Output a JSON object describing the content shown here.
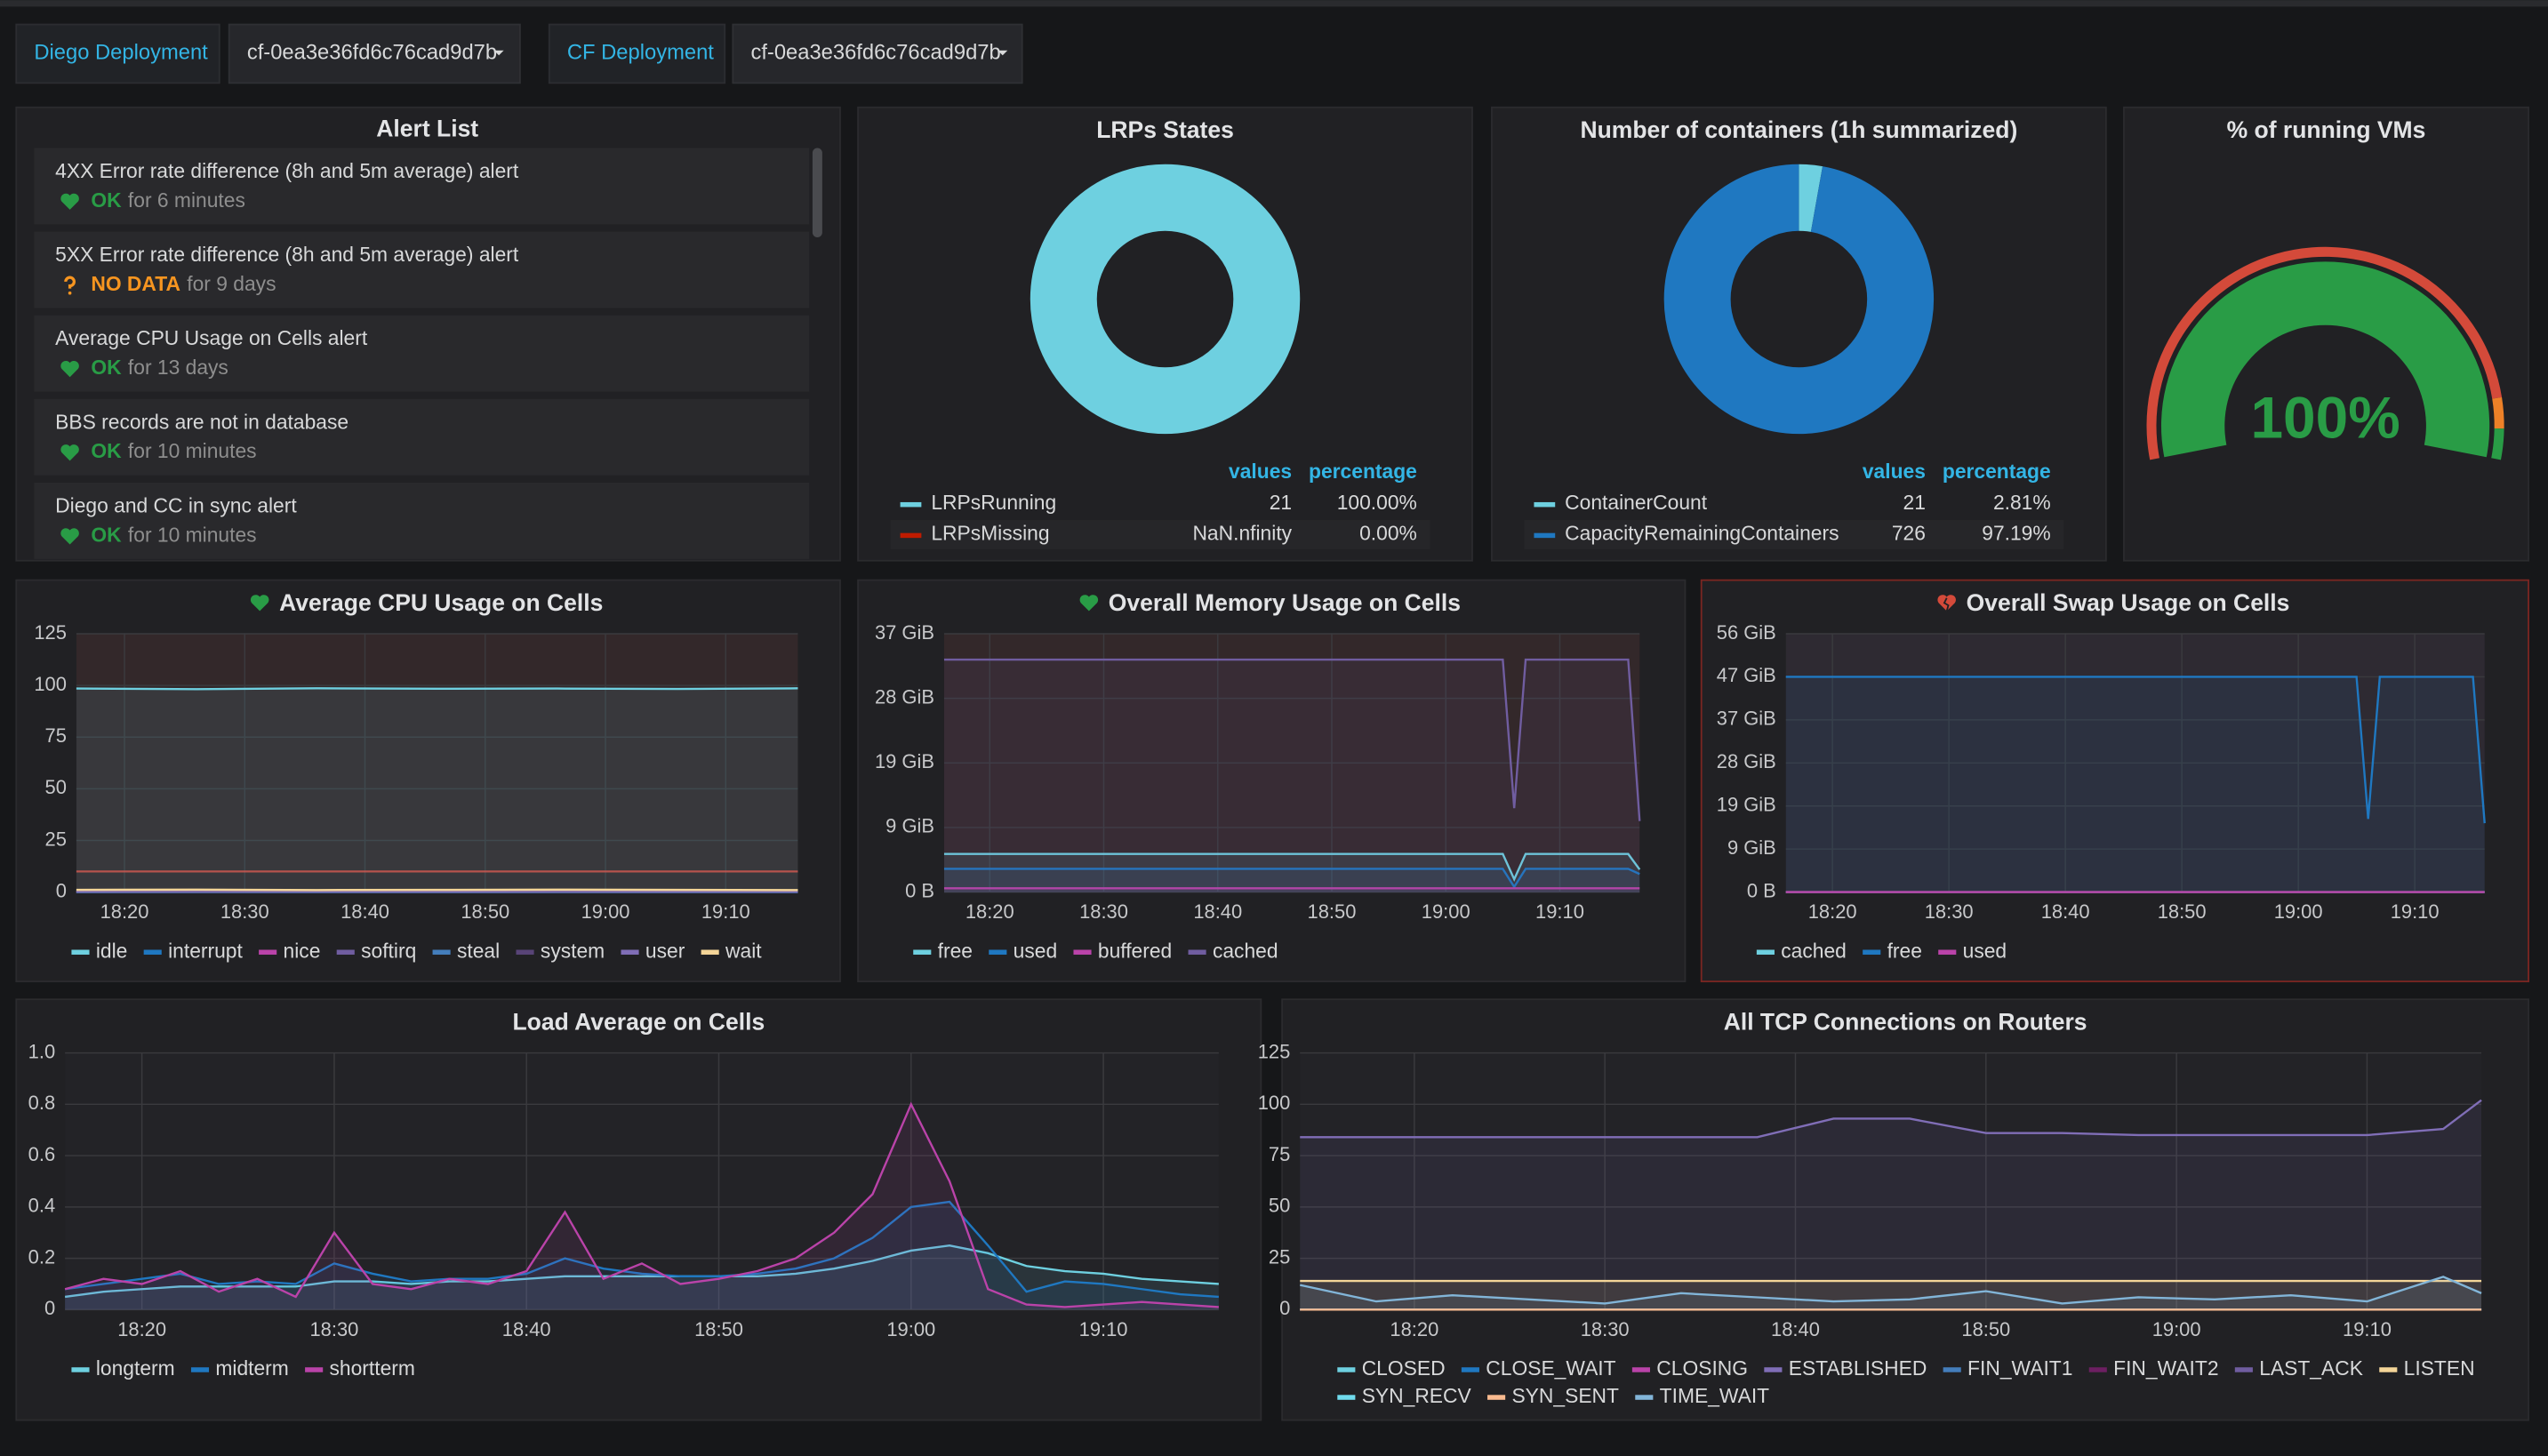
{
  "header": {
    "variables": [
      {
        "label": "Diego Deployment",
        "value": "cf-0ea3e36fd6c76cad9d7b"
      },
      {
        "label": "CF Deployment",
        "value": "cf-0ea3e36fd6c76cad9d7b"
      }
    ]
  },
  "alert_list": {
    "title": "Alert List",
    "alerts": [
      {
        "name": "4XX Error rate difference (8h and 5m average) alert",
        "state": "OK",
        "duration": "for 6 minutes",
        "icon": "heart",
        "color": "#299c46"
      },
      {
        "name": "5XX Error rate difference (8h and 5m average) alert",
        "state": "NO DATA",
        "duration": "for 9 days",
        "icon": "question",
        "color": "#f79520"
      },
      {
        "name": "Average CPU Usage on Cells alert",
        "state": "OK",
        "duration": "for 13 days",
        "icon": "heart",
        "color": "#299c46"
      },
      {
        "name": "BBS records are not in database",
        "state": "OK",
        "duration": "for 10 minutes",
        "icon": "heart",
        "color": "#299c46"
      },
      {
        "name": "Diego and CC in sync alert",
        "state": "OK",
        "duration": "for 10 minutes",
        "icon": "heart",
        "color": "#299c46"
      }
    ]
  },
  "chart_data": [
    {
      "type": "pie",
      "title": "LRPs States",
      "columns": [
        "values",
        "percentage"
      ],
      "categories": [
        "LRPsRunning",
        "LRPsMissing"
      ],
      "values": [
        21,
        null
      ],
      "value_labels": [
        "21",
        "NaN.nfinity"
      ],
      "percentages": [
        "100.00%",
        "0.00%"
      ],
      "colors": [
        "#6ed0e0",
        "#bf1b00"
      ]
    },
    {
      "type": "pie",
      "title": "Number of containers (1h summarized)",
      "columns": [
        "values",
        "percentage"
      ],
      "categories": [
        "ContainerCount",
        "CapacityRemainingContainers"
      ],
      "values": [
        21,
        726
      ],
      "value_labels": [
        "21",
        "726"
      ],
      "percentages": [
        "2.81%",
        "97.19%"
      ],
      "colors": [
        "#6ed0e0",
        "#1f78c1"
      ]
    },
    {
      "type": "gauge",
      "title": "% of running VMs",
      "value": 100,
      "value_label": "100%",
      "min": 0,
      "max": 100,
      "thresholds": [
        90,
        95
      ],
      "colors": [
        "#d44a3a",
        "#ed8128",
        "#299c46"
      ]
    },
    {
      "type": "line",
      "title": "Average CPU Usage on Cells",
      "alert_icon": {
        "icon": "heart",
        "color": "#299c46"
      },
      "x": [
        "18:16",
        "18:26",
        "18:36",
        "18:46",
        "18:56",
        "19:06",
        "19:16"
      ],
      "xlim": [
        "18:16",
        "19:16"
      ],
      "xticks": [
        "18:20",
        "18:30",
        "18:40",
        "18:50",
        "19:00",
        "19:10"
      ],
      "ylim": [
        0,
        125
      ],
      "yticks": [
        0,
        25,
        50,
        75,
        100,
        125
      ],
      "threshold": 10,
      "threshold_color": "#e24d42",
      "series": [
        {
          "name": "idle",
          "color": "#6ed0e0",
          "values": [
            98.5,
            98.2,
            98.6,
            98.4,
            98.5,
            98.3,
            98.6
          ]
        },
        {
          "name": "interrupt",
          "color": "#1f78c1",
          "values": [
            0,
            0,
            0,
            0,
            0,
            0,
            0
          ]
        },
        {
          "name": "nice",
          "color": "#ba43a9",
          "values": [
            0,
            0,
            0,
            0,
            0,
            0,
            0
          ]
        },
        {
          "name": "softirq",
          "color": "#705da0",
          "values": [
            0.1,
            0.1,
            0.1,
            0.1,
            0.1,
            0.1,
            0.1
          ]
        },
        {
          "name": "steal",
          "color": "#447ebc",
          "values": [
            0,
            0,
            0,
            0,
            0,
            0,
            0
          ]
        },
        {
          "name": "system",
          "color": "#584477",
          "values": [
            0.3,
            0.3,
            0.3,
            0.3,
            0.3,
            0.3,
            0.3
          ]
        },
        {
          "name": "user",
          "color": "#806eb7",
          "values": [
            0.4,
            0.5,
            0.4,
            0.4,
            0.5,
            0.4,
            0.4
          ]
        },
        {
          "name": "wait",
          "color": "#f4d598",
          "values": [
            1.1,
            1.2,
            1,
            1.1,
            1.2,
            1.1,
            1
          ]
        }
      ]
    },
    {
      "type": "line",
      "title": "Overall Memory Usage on Cells",
      "alert_icon": {
        "icon": "heart",
        "color": "#299c46"
      },
      "x": [
        "18:16",
        "18:26",
        "18:36",
        "18:46",
        "18:56",
        "19:05",
        "19:06",
        "19:07",
        "19:16",
        "19:17"
      ],
      "xlim": [
        "18:16",
        "19:17"
      ],
      "xticks": [
        "18:20",
        "18:30",
        "18:40",
        "18:50",
        "19:00",
        "19:10"
      ],
      "ylim": [
        0,
        40000000000
      ],
      "yticks": [
        {
          "value": 0,
          "label": "0 B"
        },
        {
          "value": 10000000000,
          "label": "9 GiB"
        },
        {
          "value": 20000000000,
          "label": "19 GiB"
        },
        {
          "value": 30000000000,
          "label": "28 GiB"
        },
        {
          "value": 40000000000,
          "label": "37 GiB"
        }
      ],
      "series": [
        {
          "name": "free",
          "color": "#6ed0e0",
          "values": [
            5900000000,
            5900000000,
            5900000000,
            5900000000,
            5900000000,
            5900000000,
            2000000000,
            5900000000,
            5900000000,
            3500000000
          ]
        },
        {
          "name": "used",
          "color": "#1f78c1",
          "values": [
            3600000000,
            3600000000,
            3600000000,
            3600000000,
            3600000000,
            3600000000,
            800000000,
            3600000000,
            3600000000,
            2800000000
          ]
        },
        {
          "name": "buffered",
          "color": "#ba43a9",
          "values": [
            600000000,
            600000000,
            600000000,
            600000000,
            600000000,
            600000000,
            600000000,
            600000000,
            600000000,
            600000000
          ]
        },
        {
          "name": "cached",
          "color": "#705da0",
          "values": [
            36000000000,
            36000000000,
            36000000000,
            36000000000,
            36000000000,
            36000000000,
            13000000000,
            36000000000,
            36000000000,
            11000000000
          ]
        }
      ]
    },
    {
      "type": "line",
      "title": "Overall Swap Usage on Cells",
      "alert_icon": {
        "icon": "heart-broken",
        "color": "#d44a3a"
      },
      "x": [
        "18:16",
        "18:26",
        "18:36",
        "18:46",
        "18:56",
        "19:05",
        "19:06",
        "19:07",
        "19:15",
        "19:16"
      ],
      "xlim": [
        "18:16",
        "19:16"
      ],
      "xticks": [
        "18:20",
        "18:30",
        "18:40",
        "18:50",
        "19:00",
        "19:10"
      ],
      "ylim": [
        0,
        60000000000
      ],
      "yticks": [
        {
          "value": 0,
          "label": "0 B"
        },
        {
          "value": 10000000000,
          "label": "9 GiB"
        },
        {
          "value": 20000000000,
          "label": "19 GiB"
        },
        {
          "value": 30000000000,
          "label": "28 GiB"
        },
        {
          "value": 40000000000,
          "label": "37 GiB"
        },
        {
          "value": 50000000000,
          "label": "47 GiB"
        },
        {
          "value": 60000000000,
          "label": "56 GiB"
        }
      ],
      "series": [
        {
          "name": "cached",
          "color": "#6ed0e0",
          "values": [
            0,
            0,
            0,
            0,
            0,
            0,
            0,
            0,
            0,
            0
          ]
        },
        {
          "name": "free",
          "color": "#1f78c1",
          "values": [
            50000000000,
            50000000000,
            50000000000,
            50000000000,
            50000000000,
            50000000000,
            17000000000,
            50000000000,
            50000000000,
            16000000000
          ]
        },
        {
          "name": "used",
          "color": "#ba43a9",
          "values": [
            0,
            0,
            0,
            0,
            0,
            0,
            0,
            0,
            0,
            0
          ]
        }
      ]
    },
    {
      "type": "line",
      "title": "Load Average on Cells",
      "x": [
        "18:16",
        "18:18",
        "18:20",
        "18:22",
        "18:24",
        "18:26",
        "18:28",
        "18:30",
        "18:32",
        "18:34",
        "18:36",
        "18:38",
        "18:40",
        "18:42",
        "18:44",
        "18:46",
        "18:48",
        "18:50",
        "18:52",
        "18:54",
        "18:56",
        "18:58",
        "19:00",
        "19:02",
        "19:04",
        "19:06",
        "19:08",
        "19:10",
        "19:12",
        "19:14",
        "19:16"
      ],
      "xlim": [
        "18:16",
        "19:16"
      ],
      "xticks": [
        "18:20",
        "18:30",
        "18:40",
        "18:50",
        "19:00",
        "19:10"
      ],
      "ylim": [
        0,
        1
      ],
      "yticks": [
        0,
        0.2,
        0.4,
        0.6,
        0.8,
        {
          "value": 1,
          "label": "1.0"
        }
      ],
      "series": [
        {
          "name": "longterm",
          "color": "#6ed0e0",
          "values": [
            0.05,
            0.07,
            0.08,
            0.09,
            0.09,
            0.09,
            0.09,
            0.11,
            0.11,
            0.1,
            0.11,
            0.11,
            0.12,
            0.13,
            0.13,
            0.13,
            0.13,
            0.13,
            0.13,
            0.14,
            0.16,
            0.19,
            0.23,
            0.25,
            0.22,
            0.17,
            0.15,
            0.14,
            0.12,
            0.11,
            0.1
          ]
        },
        {
          "name": "midterm",
          "color": "#1f78c1",
          "values": [
            0.08,
            0.1,
            0.12,
            0.14,
            0.1,
            0.11,
            0.1,
            0.18,
            0.14,
            0.11,
            0.12,
            0.12,
            0.14,
            0.2,
            0.16,
            0.14,
            0.13,
            0.13,
            0.14,
            0.16,
            0.2,
            0.28,
            0.4,
            0.42,
            0.25,
            0.07,
            0.11,
            0.1,
            0.08,
            0.06,
            0.05
          ]
        },
        {
          "name": "shortterm",
          "color": "#ba43a9",
          "values": [
            0.08,
            0.12,
            0.1,
            0.15,
            0.07,
            0.12,
            0.05,
            0.3,
            0.1,
            0.08,
            0.12,
            0.1,
            0.15,
            0.38,
            0.12,
            0.18,
            0.1,
            0.12,
            0.15,
            0.2,
            0.3,
            0.45,
            0.8,
            0.5,
            0.08,
            0.02,
            0.01,
            0.02,
            0.03,
            0.02,
            0.01
          ]
        }
      ]
    },
    {
      "type": "line",
      "title": "All TCP Connections on Routers",
      "x": [
        "18:14",
        "18:18",
        "18:22",
        "18:26",
        "18:30",
        "18:34",
        "18:38",
        "18:42",
        "18:46",
        "18:50",
        "18:54",
        "18:58",
        "19:02",
        "19:06",
        "19:10",
        "19:14",
        "19:16"
      ],
      "xlim": [
        "18:14",
        "19:16"
      ],
      "xticks": [
        "18:20",
        "18:30",
        "18:40",
        "18:50",
        "19:00",
        "19:10"
      ],
      "ylim": [
        0,
        125
      ],
      "yticks": [
        0,
        25,
        50,
        75,
        100,
        125
      ],
      "series": [
        {
          "name": "CLOSED",
          "color": "#6ed0e0",
          "values": [
            0,
            0,
            0,
            0,
            0,
            0,
            0,
            0,
            0,
            0,
            0,
            0,
            0,
            0,
            0,
            0,
            0
          ]
        },
        {
          "name": "CLOSE_WAIT",
          "color": "#1f78c1",
          "values": [
            0,
            0,
            0,
            0,
            0,
            0,
            0,
            0,
            0,
            0,
            0,
            0,
            0,
            0,
            0,
            0,
            0
          ]
        },
        {
          "name": "CLOSING",
          "color": "#ba43a9",
          "values": [
            0,
            0,
            0,
            0,
            0,
            0,
            0,
            0,
            0,
            0,
            0,
            0,
            0,
            0,
            0,
            0,
            0
          ]
        },
        {
          "name": "ESTABLISHED",
          "color": "#806eb7",
          "values": [
            84,
            84,
            84,
            84,
            84,
            84,
            84,
            93,
            93,
            86,
            86,
            85,
            85,
            85,
            85,
            88,
            102
          ]
        },
        {
          "name": "FIN_WAIT1",
          "color": "#447ebc",
          "values": [
            0,
            0,
            0,
            0,
            0,
            0,
            0,
            0,
            0,
            0,
            0,
            0,
            0,
            0,
            0,
            0,
            0
          ]
        },
        {
          "name": "FIN_WAIT2",
          "color": "#6d1f62",
          "values": [
            0,
            0,
            0,
            0,
            0,
            0,
            0,
            0,
            0,
            0,
            0,
            0,
            0,
            0,
            0,
            0,
            0
          ]
        },
        {
          "name": "LAST_ACK",
          "color": "#705da0",
          "values": [
            0,
            0,
            0,
            0,
            0,
            0,
            0,
            0,
            0,
            0,
            0,
            0,
            0,
            0,
            0,
            0,
            0
          ]
        },
        {
          "name": "LISTEN",
          "color": "#f4d598",
          "values": [
            14,
            14,
            14,
            14,
            14,
            14,
            14,
            14,
            14,
            14,
            14,
            14,
            14,
            14,
            14,
            14,
            14
          ]
        },
        {
          "name": "SYN_RECV",
          "color": "#70dbed",
          "values": [
            0,
            0,
            0,
            0,
            0,
            0,
            0,
            0,
            0,
            0,
            0,
            0,
            0,
            0,
            0,
            0,
            0
          ]
        },
        {
          "name": "SYN_SENT",
          "color": "#f9ba8f",
          "values": [
            0,
            0,
            0,
            0,
            0,
            0,
            0,
            0,
            0,
            0,
            0,
            0,
            0,
            0,
            0,
            0,
            0
          ]
        },
        {
          "name": "TIME_WAIT",
          "color": "#82b5d8",
          "values": [
            12,
            4,
            7,
            5,
            3,
            8,
            6,
            4,
            5,
            9,
            3,
            6,
            5,
            7,
            4,
            16,
            8
          ]
        }
      ]
    }
  ]
}
